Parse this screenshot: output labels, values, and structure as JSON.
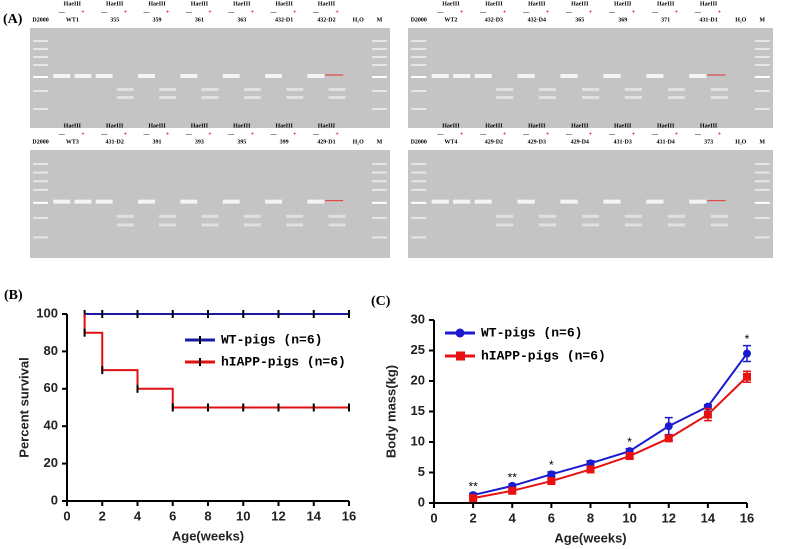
{
  "panel_a": {
    "label": "(A)",
    "enzyme": "HaeIII",
    "minus": "—",
    "plus": "+",
    "gels": [
      {
        "ladder": "D2000",
        "samples": [
          "WT1",
          "355",
          "359",
          "361",
          "363",
          "432-D1",
          "432-D2"
        ],
        "water": "H₂O",
        "marker": "M"
      },
      {
        "ladder": "D2000",
        "samples": [
          "WT2",
          "432-D3",
          "432-D4",
          "365",
          "369",
          "371",
          "431-D1"
        ],
        "water": "H₂O",
        "marker": "M"
      },
      {
        "ladder": "D2000",
        "samples": [
          "WT3",
          "431-D2",
          "391",
          "393",
          "395",
          "399",
          "429-D1"
        ],
        "water": "H₂O",
        "marker": "M"
      },
      {
        "ladder": "D2000",
        "samples": [
          "WT4",
          "429-D2",
          "429-D3",
          "429-D4",
          "431-D3",
          "431-D4",
          "373"
        ],
        "water": "H₂O",
        "marker": "M"
      }
    ]
  },
  "chart_data": [
    {
      "type": "line",
      "panel_label": "(B)",
      "x_label": "Age(weeks)",
      "y_label": "Percent survival",
      "xlim": [
        0,
        16
      ],
      "xticks": [
        0,
        2,
        4,
        6,
        8,
        10,
        12,
        14,
        16
      ],
      "ylim": [
        0,
        100
      ],
      "yticks": [
        0,
        20,
        40,
        60,
        80,
        100
      ],
      "legend": "center right",
      "series": [
        {
          "name": "WT-pigs (n=6)",
          "color": "#1a1aa0",
          "marker": "tick",
          "x": [
            1,
            2,
            4,
            6,
            8,
            10,
            12,
            14,
            16
          ],
          "values": [
            100,
            100,
            100,
            100,
            100,
            100,
            100,
            100,
            100
          ]
        },
        {
          "name": "hIAPP-pigs (n=6)",
          "color": "#e01010",
          "marker": "tick",
          "x": [
            1,
            1,
            2,
            2,
            4,
            4,
            6,
            6,
            8,
            10,
            12,
            14,
            16
          ],
          "values": [
            100,
            90,
            90,
            70,
            70,
            60,
            60,
            50,
            50,
            50,
            50,
            50,
            50
          ]
        }
      ]
    },
    {
      "type": "line",
      "panel_label": "(C)",
      "x_label": "Age(weeks)",
      "y_label": "Body mass(kg)",
      "xlim": [
        0,
        16
      ],
      "xticks": [
        0,
        2,
        4,
        6,
        8,
        10,
        12,
        14,
        16
      ],
      "ylim": [
        0,
        30
      ],
      "yticks": [
        0,
        5,
        10,
        15,
        20,
        25,
        30
      ],
      "legend": "upper left",
      "series": [
        {
          "name": "WT-pigs (n=6)",
          "color": "#1a1ad0",
          "marker": "circle",
          "x": [
            2,
            4,
            6,
            8,
            10,
            12,
            14,
            16
          ],
          "values": [
            1.3,
            2.8,
            4.7,
            6.5,
            8.5,
            12.6,
            15.8,
            24.5
          ],
          "errors": [
            0.3,
            0.3,
            0.4,
            0.4,
            0.4,
            1.4,
            0.3,
            1.3
          ]
        },
        {
          "name": "hIAPP-pigs (n=6)",
          "color": "#e81010",
          "marker": "square",
          "x": [
            2,
            4,
            6,
            8,
            10,
            12,
            14,
            16
          ],
          "values": [
            0.8,
            2.0,
            3.6,
            5.5,
            7.7,
            10.6,
            14.5,
            20.7
          ],
          "errors": [
            0.2,
            0.3,
            0.3,
            0.3,
            0.3,
            0.4,
            1.0,
            0.9
          ]
        }
      ],
      "annotations": [
        {
          "text": "**",
          "x": 2
        },
        {
          "text": "**",
          "x": 4
        },
        {
          "text": "*",
          "x": 6
        },
        {
          "text": "*",
          "x": 10
        },
        {
          "text": "*",
          "x": 16
        }
      ]
    }
  ]
}
